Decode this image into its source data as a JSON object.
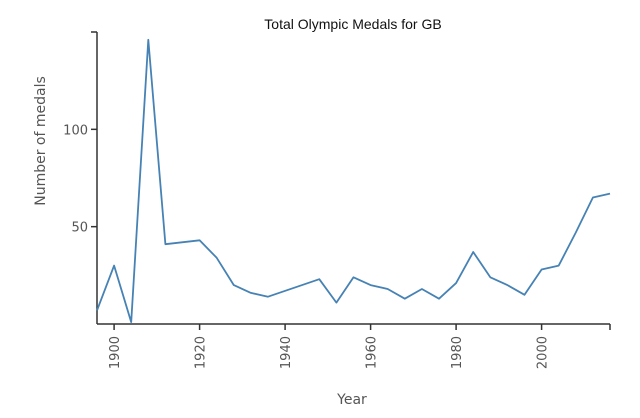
{
  "chart_data": {
    "type": "line",
    "title": "Total Olympic Medals for GB",
    "xlabel": "Year",
    "ylabel": "Number of medals",
    "xlim": [
      1896,
      2016
    ],
    "ylim": [
      0,
      150
    ],
    "x_ticks": [
      1900,
      1920,
      1940,
      1960,
      1980,
      2000
    ],
    "x_tick_labels": [
      "1900",
      "1920",
      "1940",
      "1960",
      "1980",
      "2000"
    ],
    "y_ticks": [
      50,
      100
    ],
    "y_tick_labels": [
      "50",
      "100"
    ],
    "grid": false,
    "series": [
      {
        "color": "#4682b4",
        "x": [
          1896,
          1900,
          1904,
          1908,
          1912,
          1920,
          1924,
          1928,
          1932,
          1936,
          1948,
          1952,
          1956,
          1960,
          1964,
          1968,
          1972,
          1976,
          1980,
          1984,
          1988,
          1992,
          1996,
          2000,
          2004,
          2008,
          2012,
          2016
        ],
        "y": [
          7,
          30,
          1,
          146,
          41,
          43,
          34,
          20,
          16,
          14,
          23,
          11,
          24,
          20,
          18,
          13,
          18,
          13,
          21,
          37,
          24,
          20,
          15,
          28,
          30,
          47,
          65,
          67
        ]
      }
    ]
  }
}
